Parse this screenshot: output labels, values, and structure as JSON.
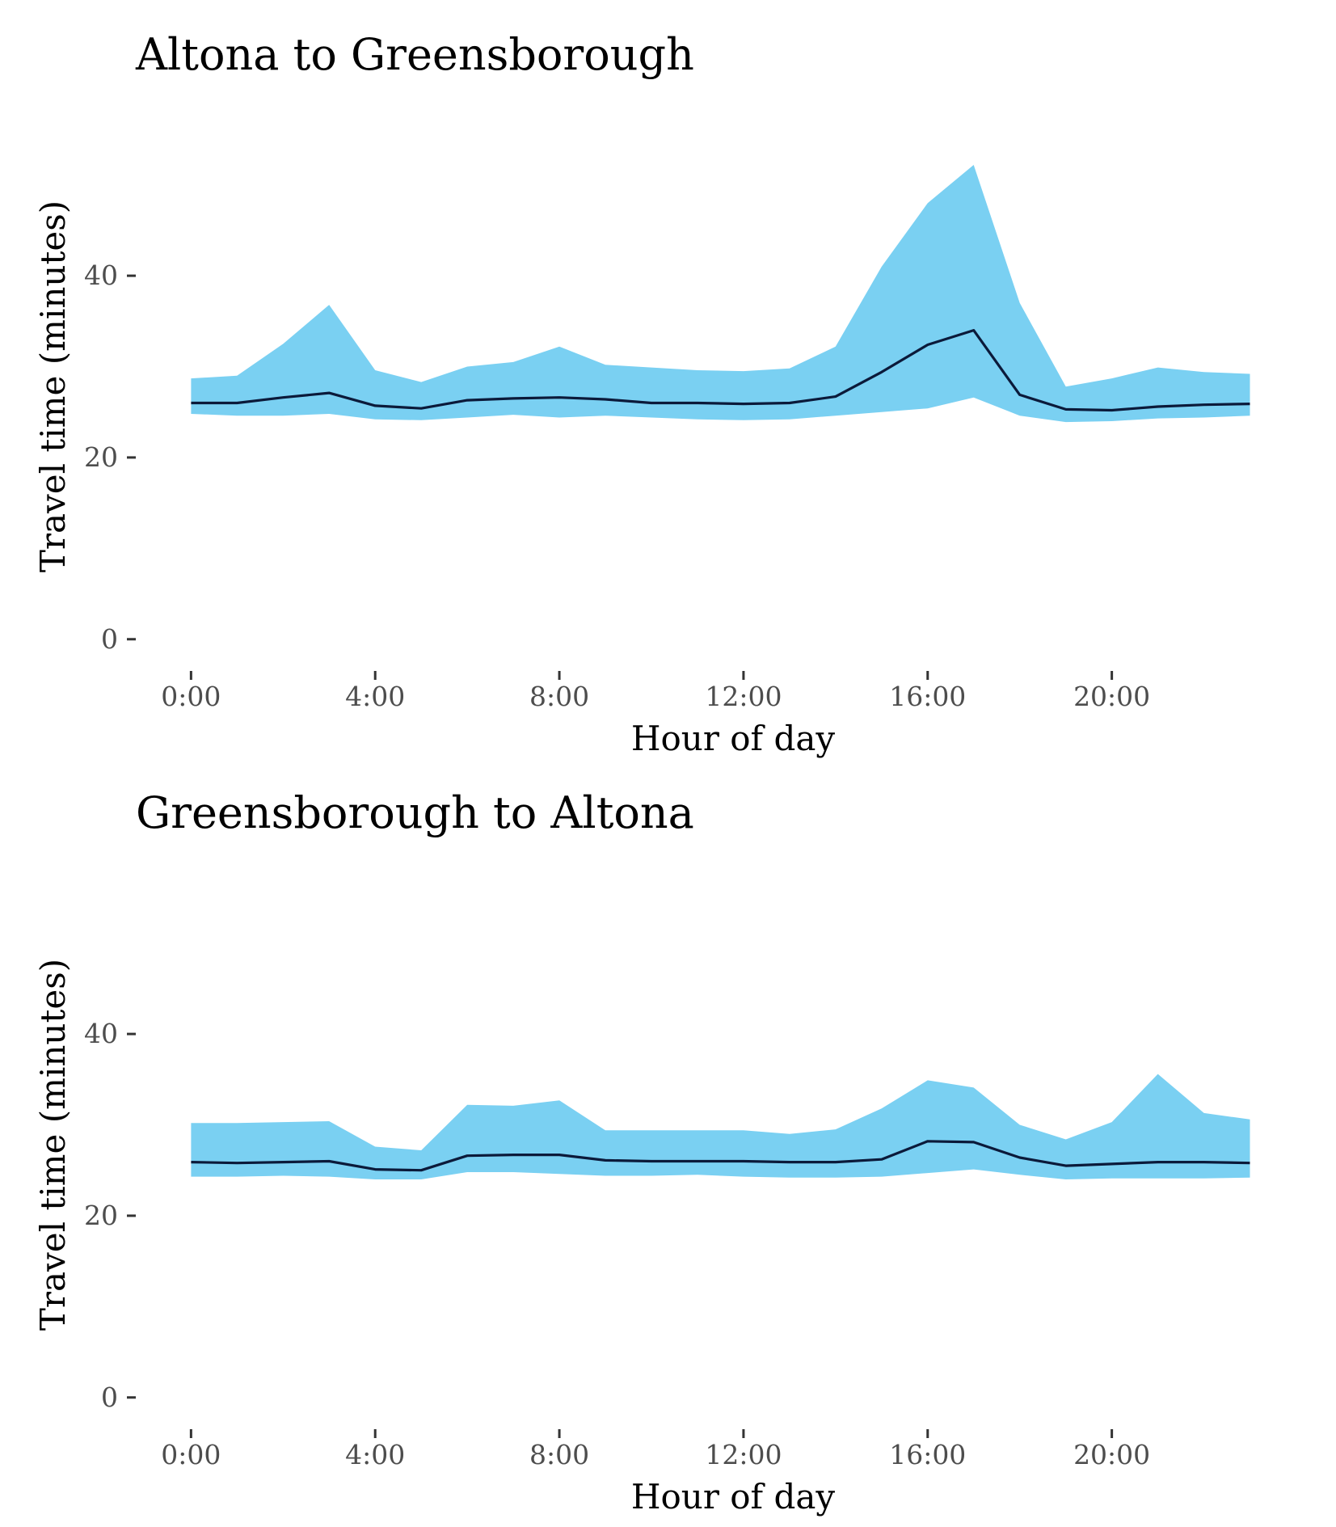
{
  "chart_data": [
    {
      "type": "area",
      "title": "Altona to Greensborough",
      "xlabel": "Hour of day",
      "ylabel": "Travel time (minutes)",
      "xlim": [
        -1.2,
        23.5
      ],
      "ylim": [
        -1,
        57
      ],
      "x_ticks": [
        0,
        4,
        8,
        12,
        16,
        20
      ],
      "x_tick_labels": [
        "0:00",
        "4:00",
        "8:00",
        "12:00",
        "16:00",
        "20:00"
      ],
      "y_ticks": [
        0,
        20,
        40
      ],
      "y_tick_labels": [
        "0",
        "20",
        "40"
      ],
      "grid": false,
      "colors": {
        "band": "#7ad0f2",
        "line": "#0b1a3a"
      },
      "x": [
        0,
        1,
        2,
        3,
        4,
        5,
        6,
        7,
        8,
        9,
        10,
        11,
        12,
        13,
        14,
        15,
        16,
        17,
        18,
        19,
        20,
        21,
        22,
        23
      ],
      "series": [
        {
          "role": "band-upper",
          "values": [
            28.7,
            29.0,
            32.5,
            36.8,
            29.6,
            28.3,
            30.0,
            30.5,
            32.2,
            30.2,
            29.9,
            29.6,
            29.5,
            29.8,
            32.2,
            41.0,
            48.0,
            52.2,
            37.0,
            27.8,
            28.7,
            29.9,
            29.4,
            29.2
          ]
        },
        {
          "role": "median",
          "values": [
            26.0,
            26.0,
            26.6,
            27.1,
            25.7,
            25.4,
            26.3,
            26.5,
            26.6,
            26.4,
            26.0,
            26.0,
            25.9,
            26.0,
            26.7,
            29.4,
            32.4,
            34.0,
            26.9,
            25.3,
            25.2,
            25.6,
            25.8,
            25.9
          ]
        },
        {
          "role": "band-lower",
          "values": [
            24.8,
            24.6,
            24.6,
            24.8,
            24.2,
            24.1,
            24.4,
            24.7,
            24.4,
            24.6,
            24.4,
            24.2,
            24.1,
            24.2,
            24.6,
            25.0,
            25.4,
            26.6,
            24.6,
            23.9,
            24.0,
            24.3,
            24.4,
            24.6
          ]
        }
      ]
    },
    {
      "type": "area",
      "title": "Greensborough to Altona",
      "xlabel": "Hour of day",
      "ylabel": "Travel time (minutes)",
      "xlim": [
        -1.2,
        23.5
      ],
      "ylim": [
        -1,
        57
      ],
      "x_ticks": [
        0,
        4,
        8,
        12,
        16,
        20
      ],
      "x_tick_labels": [
        "0:00",
        "4:00",
        "8:00",
        "12:00",
        "16:00",
        "20:00"
      ],
      "y_ticks": [
        0,
        20,
        40
      ],
      "y_tick_labels": [
        "0",
        "20",
        "40"
      ],
      "grid": false,
      "colors": {
        "band": "#7ad0f2",
        "line": "#0b1a3a"
      },
      "x": [
        0,
        1,
        2,
        3,
        4,
        5,
        6,
        7,
        8,
        9,
        10,
        11,
        12,
        13,
        14,
        15,
        16,
        17,
        18,
        19,
        20,
        21,
        22,
        23
      ],
      "series": [
        {
          "role": "band-upper",
          "values": [
            30.2,
            30.2,
            30.3,
            30.4,
            27.6,
            27.2,
            32.2,
            32.1,
            32.7,
            29.4,
            29.4,
            29.4,
            29.4,
            29.0,
            29.5,
            31.8,
            34.9,
            34.1,
            30.0,
            28.4,
            30.3,
            35.6,
            31.3,
            30.6
          ]
        },
        {
          "role": "median",
          "values": [
            25.9,
            25.8,
            25.9,
            26.0,
            25.1,
            25.0,
            26.6,
            26.7,
            26.7,
            26.1,
            26.0,
            26.0,
            26.0,
            25.9,
            25.9,
            26.2,
            28.2,
            28.1,
            26.4,
            25.5,
            25.7,
            25.9,
            25.9,
            25.8
          ]
        },
        {
          "role": "band-lower",
          "values": [
            24.3,
            24.3,
            24.4,
            24.3,
            24.0,
            24.0,
            24.8,
            24.8,
            24.6,
            24.4,
            24.4,
            24.5,
            24.3,
            24.2,
            24.2,
            24.3,
            24.7,
            25.1,
            24.5,
            24.0,
            24.1,
            24.1,
            24.1,
            24.2
          ]
        }
      ]
    }
  ]
}
